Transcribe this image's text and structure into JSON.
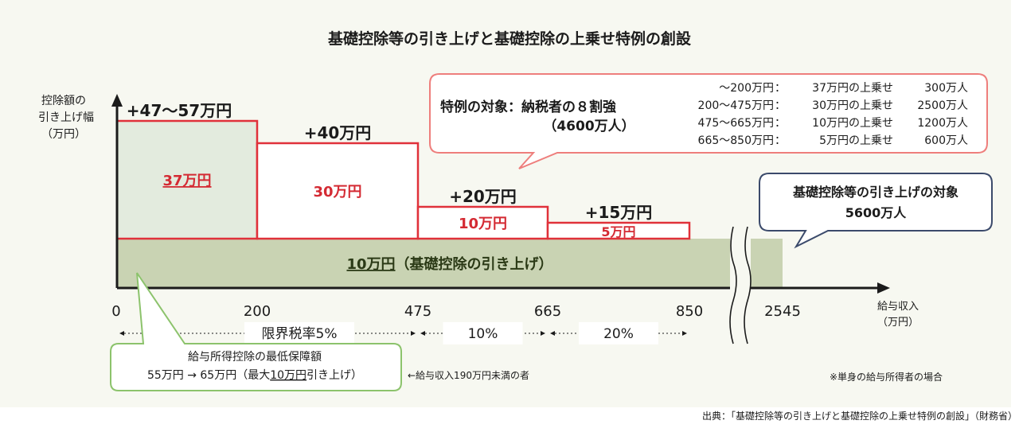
{
  "chart_data": {
    "type": "bar",
    "title": "基礎控除等の引き上げと基礎控除の上乗せ特例の創設",
    "ylabel": [
      "控除額の",
      "引き上げ幅",
      "（万円）"
    ],
    "xlabel": [
      "給与収入",
      "（万円）"
    ],
    "x_ticks": [
      "0",
      "200",
      "475",
      "665",
      "850",
      "2545"
    ],
    "base": {
      "value": 10,
      "label": "10万円",
      "label_suffix": "（基礎控除の引き上げ）",
      "x_range": [
        0,
        2545
      ]
    },
    "segments": [
      {
        "x_from": 0,
        "x_to": 200,
        "extra": 37,
        "extra_label": "37万円",
        "total_label": "+47〜57万円"
      },
      {
        "x_from": 200,
        "x_to": 475,
        "extra": 30,
        "extra_label": "30万円",
        "total_label": "+40万円"
      },
      {
        "x_from": 475,
        "x_to": 665,
        "extra": 10,
        "extra_label": "10万円",
        "total_label": "+20万円"
      },
      {
        "x_from": 665,
        "x_to": 850,
        "extra": 5,
        "extra_label": "5万円",
        "total_label": "+15万円"
      }
    ],
    "tax_rates": [
      "限界税率5%",
      "10%",
      "20%"
    ],
    "callouts": {
      "special": {
        "title_1": "特例の対象：納税者の８割強",
        "title_2": "（4600万人）",
        "rows": [
          {
            "range": "〜200万円",
            "sep": "：",
            "desc": "37万円の上乗せ",
            "count": "300万人"
          },
          {
            "range": "200〜475万円",
            "sep": "：",
            "desc": "30万円の上乗せ",
            "count": "2500万人"
          },
          {
            "range": "475〜665万円",
            "sep": "：",
            "desc": "10万円の上乗せ",
            "count": "1200万人"
          },
          {
            "range": "665〜850万円",
            "sep": "：",
            "desc": "5万円の上乗せ",
            "count": "600万人"
          }
        ]
      },
      "basic": {
        "line_1": "基礎控除等の引き上げの対象",
        "line_2": "5600万人"
      },
      "salary": {
        "line_1": "給与所得控除の最低保障額",
        "line_2a": "55万円 → 65万円（最大",
        "line_2b": "10万円",
        "line_2c": "引き上げ）",
        "note": "←給与収入190万円未満の者"
      }
    },
    "footnote": "※単身の給与所得者の場合",
    "source": "出典：「基礎控除等の引き上げと基礎控除の上乗せ特例の創設」（財務省）"
  },
  "colors": {
    "panel": "#f7f8f1",
    "base_fill": "#c9d3b3",
    "base_text": "#2b3a16",
    "bar_stroke": "#e0313a",
    "bar_text": "#d42a33",
    "bar_fill_first": "#e3ebde",
    "bar_fill": "#ffffff",
    "axis": "#1b1b1b",
    "special_stroke": "#ee7e7c",
    "basic_stroke": "#3b4a6b",
    "salary_stroke": "#8cc36c",
    "rate_band": "#ffffff"
  }
}
